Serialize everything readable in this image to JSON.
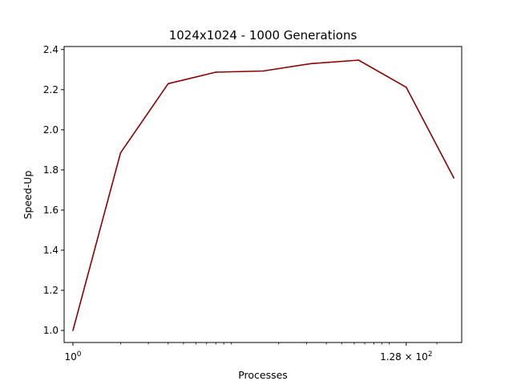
{
  "chart_data": {
    "type": "line",
    "title": "1024x1024 - 1000 Generations",
    "xlabel": "Processes",
    "ylabel": "Speed-Up",
    "x_scale": "log2",
    "x": [
      1,
      2,
      4,
      8,
      16,
      32,
      64,
      128,
      256
    ],
    "series": [
      {
        "values": [
          1.0,
          1.885,
          2.23,
          2.287,
          2.293,
          2.33,
          2.347,
          2.212,
          1.76
        ]
      }
    ],
    "xlim": [
      0.88,
      287
    ],
    "ylim": [
      0.94,
      2.415
    ],
    "yticks": [
      "1.0",
      "1.2",
      "1.4",
      "1.6",
      "1.8",
      "2.0",
      "2.2",
      "2.4"
    ],
    "xticks": [
      {
        "value": 1,
        "base": "10",
        "exp": "0"
      },
      {
        "value": 128,
        "base": "1.28 × 10",
        "exp": "2"
      }
    ],
    "grid": false,
    "line_color": "#8b0000"
  }
}
